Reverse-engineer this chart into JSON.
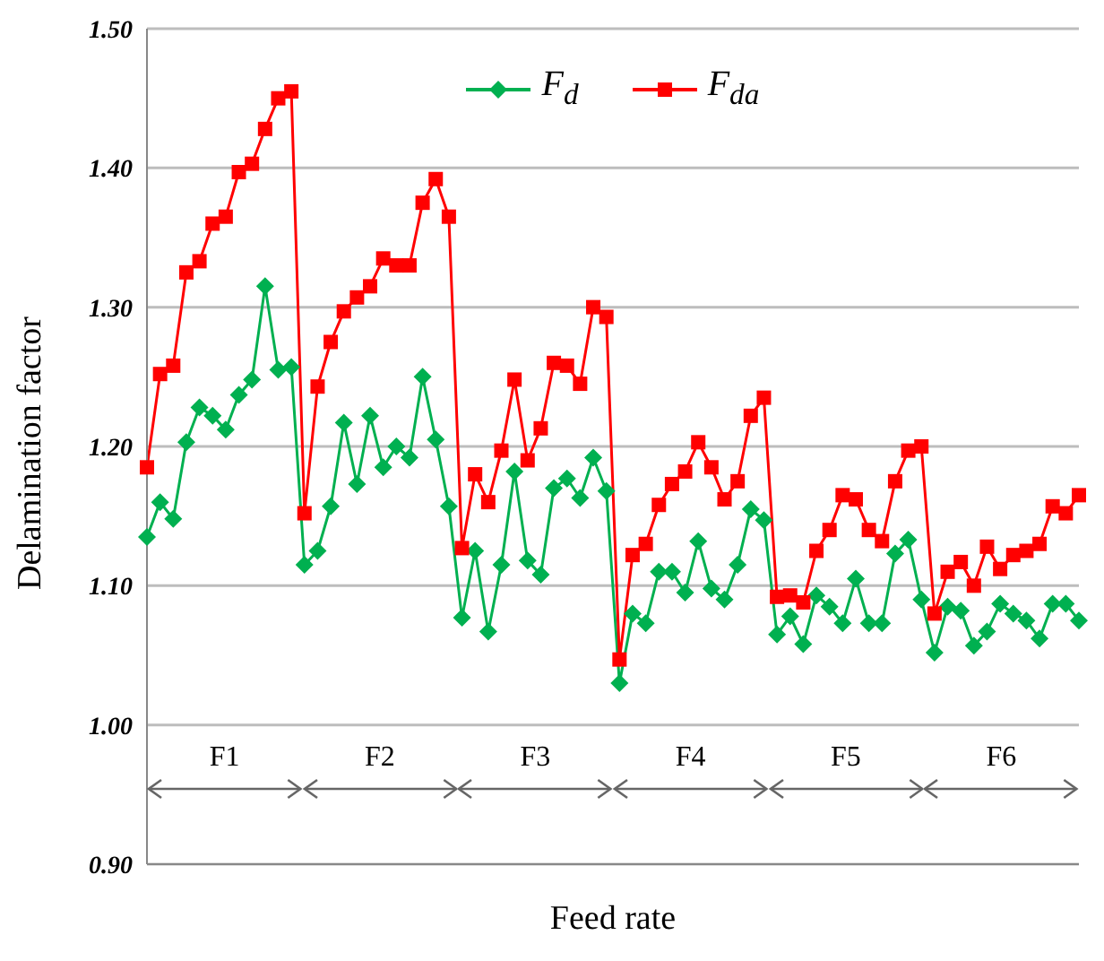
{
  "chart_data": {
    "type": "line",
    "xlabel": "Feed rate",
    "ylabel": "Delamination factor",
    "categories": [
      null,
      null,
      null,
      null,
      null,
      null,
      null,
      null,
      null,
      null,
      null,
      null,
      null,
      null,
      null,
      null,
      null,
      null,
      null,
      null,
      null,
      null,
      null,
      null,
      null,
      null,
      null,
      null,
      null,
      null,
      null,
      null,
      null,
      null,
      null,
      null,
      null,
      null,
      null,
      null,
      null,
      null,
      null,
      null,
      null,
      null,
      null,
      null,
      null,
      null,
      null,
      null,
      null,
      null,
      null,
      null,
      null,
      null,
      null,
      null,
      null,
      null,
      null,
      null,
      null,
      null,
      null,
      null,
      null,
      null,
      null,
      null
    ],
    "series": [
      {
        "name": "F$_{d}$",
        "color": "#00b050",
        "marker": "diamond",
        "values": [
          1.135,
          1.16,
          1.148,
          1.203,
          1.228,
          1.222,
          1.212,
          1.237,
          1.248,
          1.315,
          1.255,
          1.257,
          1.115,
          1.125,
          1.157,
          1.217,
          1.173,
          1.222,
          1.185,
          1.2,
          1.192,
          1.25,
          1.205,
          1.157,
          1.077,
          1.125,
          1.067,
          1.115,
          1.182,
          1.118,
          1.108,
          1.17,
          1.177,
          1.163,
          1.192,
          1.168,
          1.03,
          1.08,
          1.073,
          1.11,
          1.11,
          1.095,
          1.132,
          1.098,
          1.09,
          1.115,
          1.155,
          1.147,
          1.065,
          1.078,
          1.058,
          1.093,
          1.085,
          1.073,
          1.105,
          1.073,
          1.073,
          1.123,
          1.133,
          1.09,
          1.052,
          1.085,
          1.082,
          1.057,
          1.067,
          1.087,
          1.08,
          1.075,
          1.062,
          1.087,
          1.087,
          1.075
        ]
      },
      {
        "name": "F$_{da}$",
        "color": "#ff0000",
        "marker": "square",
        "values": [
          1.185,
          1.252,
          1.258,
          1.325,
          1.333,
          1.36,
          1.365,
          1.397,
          1.403,
          1.428,
          1.45,
          1.455,
          1.152,
          1.243,
          1.275,
          1.297,
          1.307,
          1.315,
          1.335,
          1.33,
          1.33,
          1.375,
          1.392,
          1.365,
          1.127,
          1.18,
          1.16,
          1.197,
          1.248,
          1.19,
          1.213,
          1.26,
          1.258,
          1.245,
          1.3,
          1.293,
          1.047,
          1.122,
          1.13,
          1.158,
          1.173,
          1.182,
          1.203,
          1.185,
          1.162,
          1.175,
          1.222,
          1.235,
          1.092,
          1.093,
          1.088,
          1.125,
          1.14,
          1.165,
          1.162,
          1.14,
          1.132,
          1.175,
          1.197,
          1.2,
          1.08,
          1.11,
          1.117,
          1.1,
          1.128,
          1.112,
          1.122,
          1.125,
          1.13,
          1.157,
          1.152,
          1.165
        ]
      }
    ],
    "ylim": [
      0.9,
      1.5
    ],
    "yticks": [
      {
        "value": 0.9,
        "label": "0.90"
      },
      {
        "value": 1.0,
        "label": "1.00"
      },
      {
        "value": 1.1,
        "label": "1.10"
      },
      {
        "value": 1.2,
        "label": "1.20"
      },
      {
        "value": 1.3,
        "label": "1.30"
      },
      {
        "value": 1.4,
        "label": "1.40"
      },
      {
        "value": 1.5,
        "label": "1.50"
      }
    ],
    "grid": "y",
    "legend": "top",
    "line_style": "solid",
    "annotations": [
      "F1",
      "F2",
      "F3",
      "F4",
      "F5",
      "F6"
    ]
  }
}
